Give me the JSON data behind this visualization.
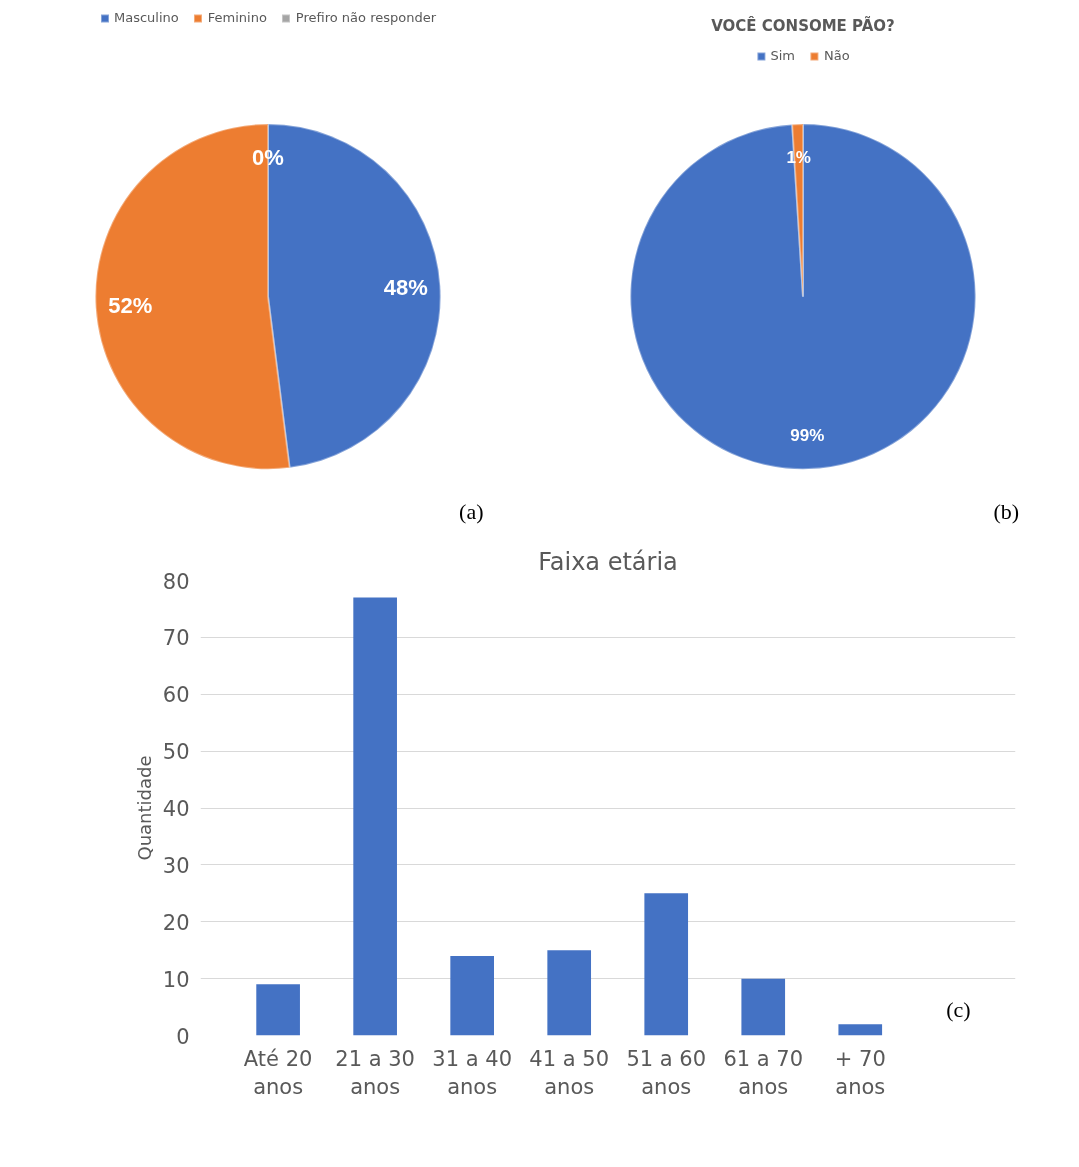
{
  "chart_data": [
    {
      "type": "pie",
      "categories": [
        "Masculino",
        "Feminino",
        "Prefiro não responder"
      ],
      "values": [
        48,
        52,
        0
      ],
      "colors": [
        "#4472c4",
        "#ed7d31",
        "#a5a5a5"
      ],
      "value_labels": [
        "48%",
        "52%",
        "0%"
      ],
      "legend": "top",
      "annotations": [
        "(a)"
      ]
    },
    {
      "type": "pie",
      "title": "VOCÊ CONSOME PÃO?",
      "categories": [
        "Sim",
        "Não"
      ],
      "values": [
        99,
        1
      ],
      "colors": [
        "#4472c4",
        "#ed7d31"
      ],
      "value_labels": [
        "99%",
        "1%"
      ],
      "legend": "top",
      "annotations": [
        "(b)"
      ]
    },
    {
      "type": "bar",
      "title": "Faixa etária",
      "ylabel": "Quantidade",
      "categories": [
        "Até 20 anos",
        "21 a 30 anos",
        "31 a 40 anos",
        "41 a 50 anos",
        "51 a 60 anos",
        "61 a 70 anos",
        "+ 70 anos"
      ],
      "values": [
        9,
        77,
        14,
        15,
        25,
        10,
        2
      ],
      "color": "#4472c4",
      "ylim": [
        0,
        80
      ],
      "yticks": [
        0,
        10,
        20,
        30,
        40,
        50,
        60,
        70,
        80
      ],
      "grid": "y",
      "annotations": [
        "(c)"
      ]
    }
  ]
}
